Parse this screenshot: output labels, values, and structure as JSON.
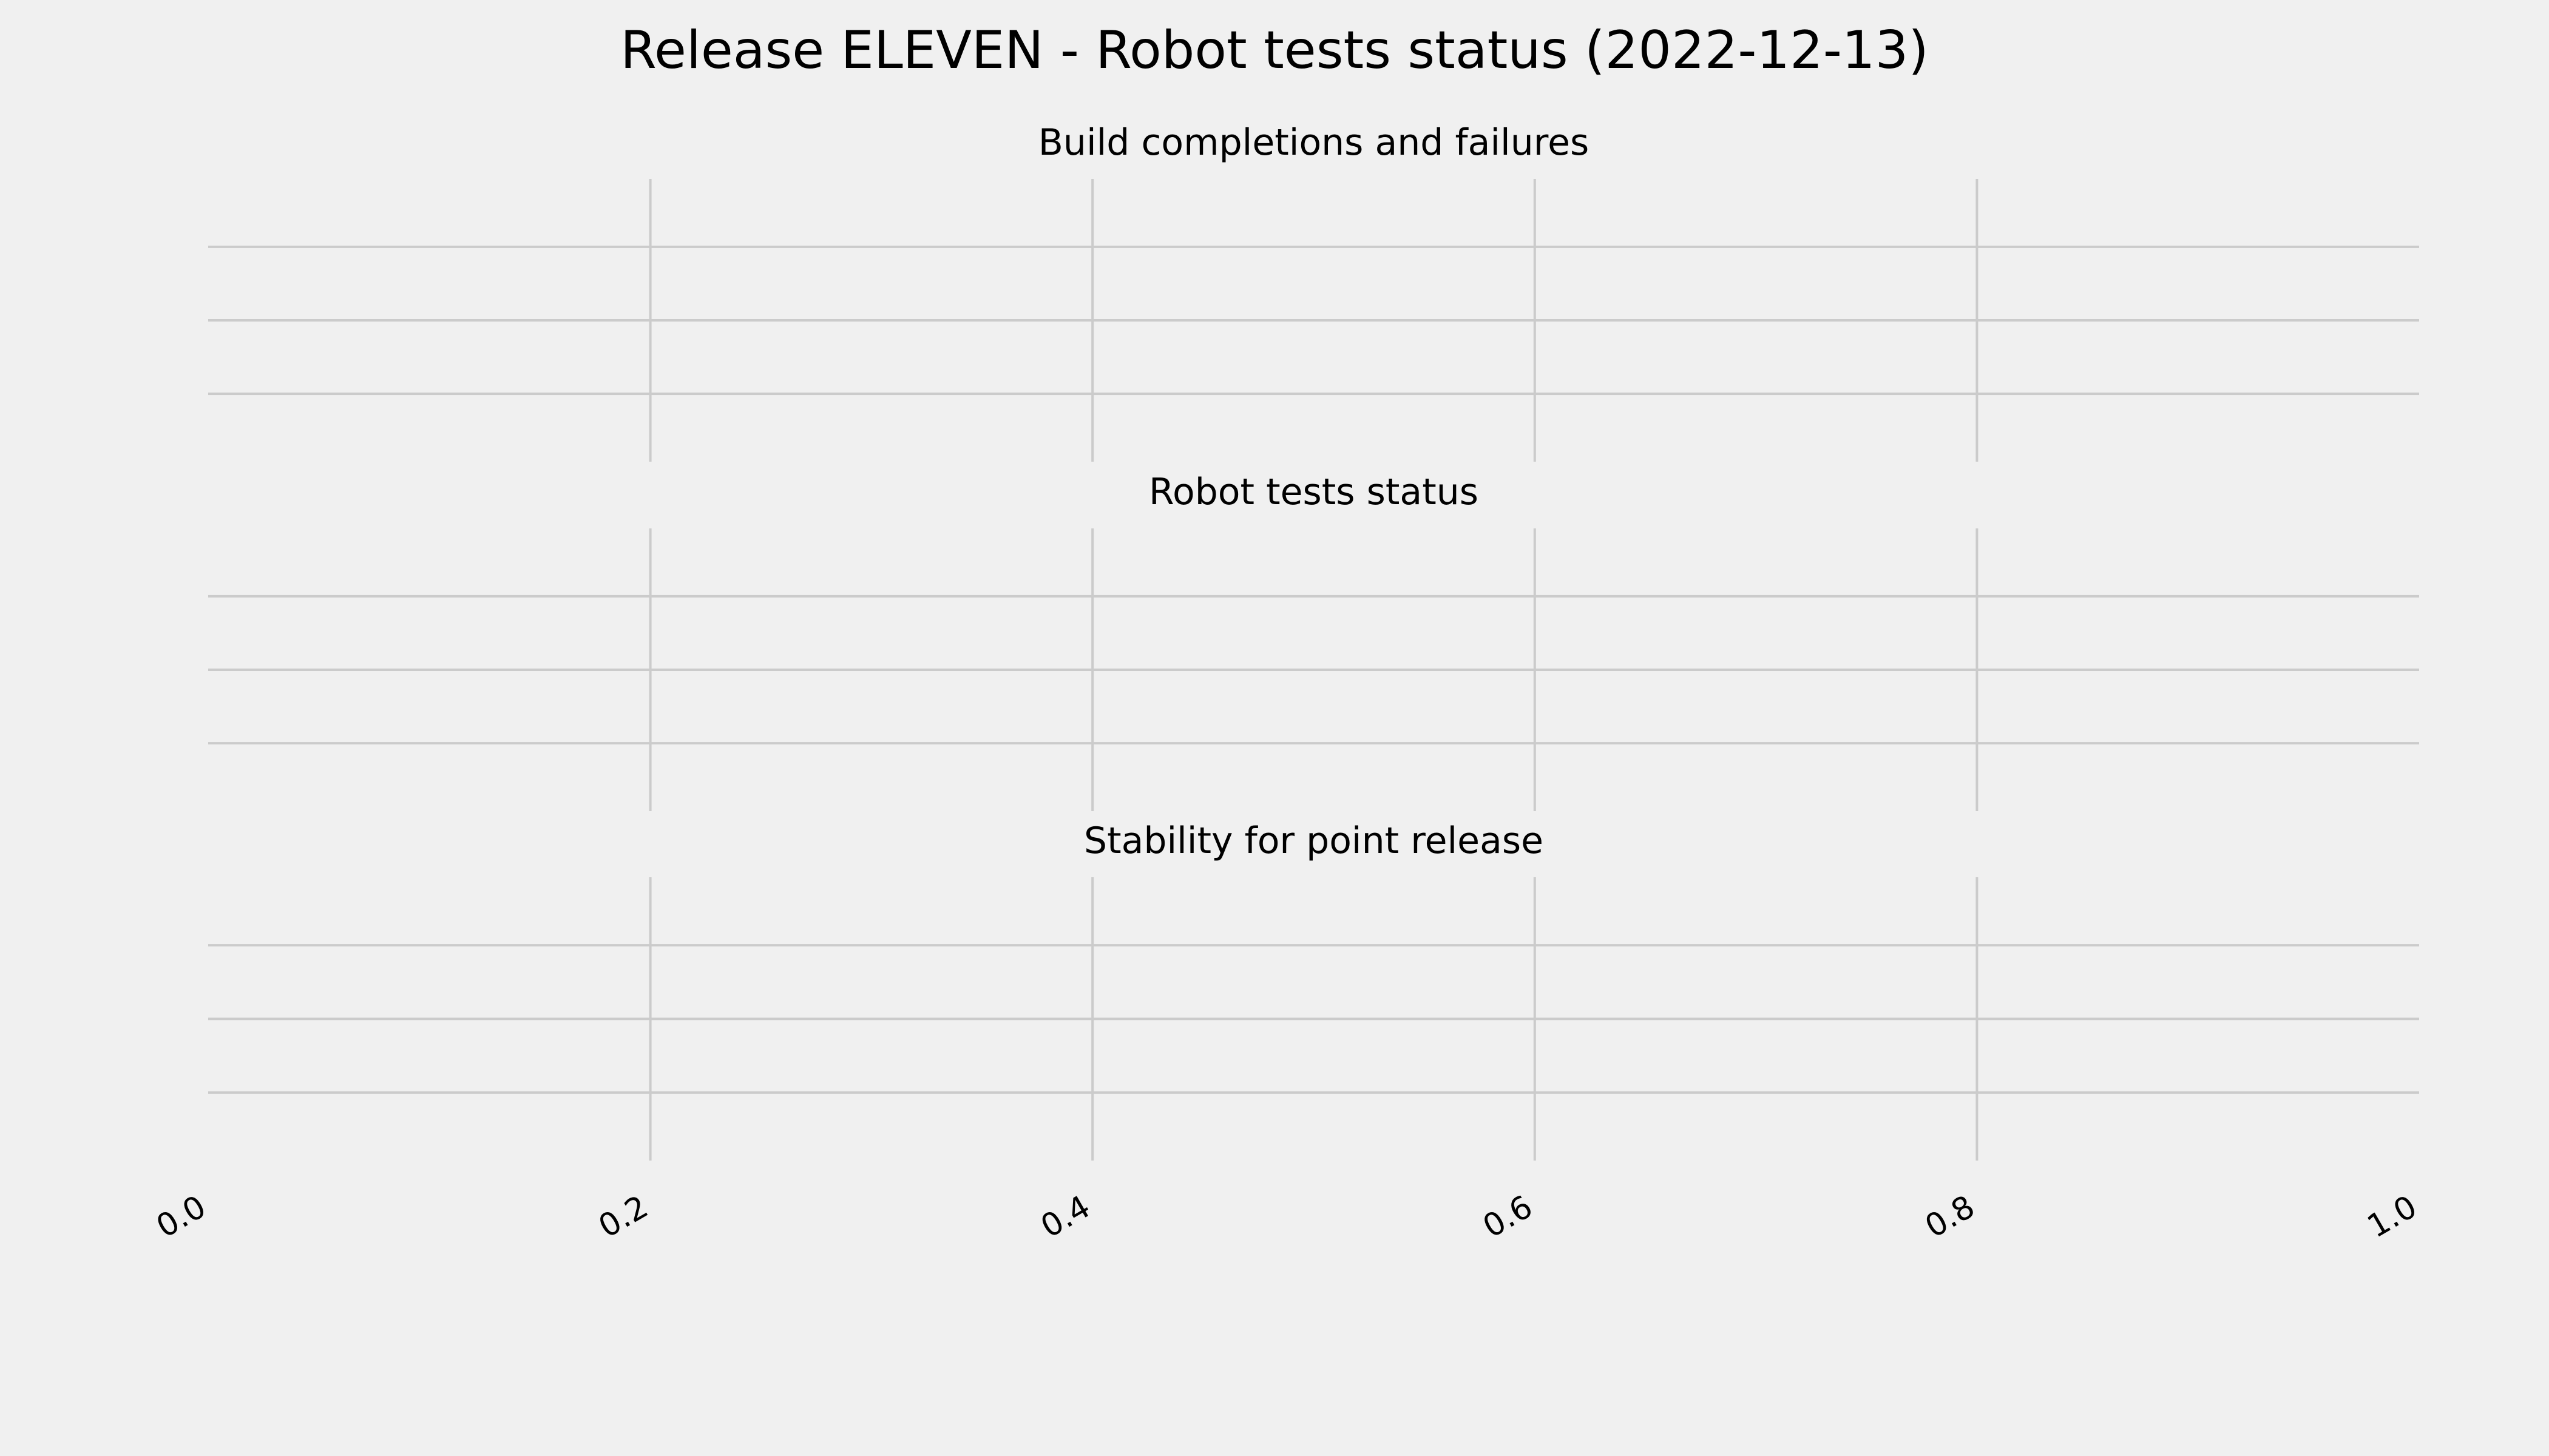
{
  "chart_data": [
    {
      "type": "line",
      "suptitle": "Release ELEVEN - Robot tests status (2022-12-13)",
      "title": "Build completions and failures",
      "series": [],
      "xlim": [
        0.0,
        1.0
      ],
      "grid": true,
      "y_ticks_labeled": false
    },
    {
      "type": "line",
      "title": "Robot tests status",
      "series": [],
      "xlim": [
        0.0,
        1.0
      ],
      "grid": true,
      "y_ticks_labeled": false
    },
    {
      "type": "line",
      "title": "Stability for point release",
      "series": [],
      "xlim": [
        0.0,
        1.0
      ],
      "xticks": [
        "0.0",
        "0.2",
        "0.4",
        "0.6",
        "0.8",
        "1.0"
      ],
      "grid": true,
      "y_ticks_labeled": false
    }
  ],
  "colors": {
    "background": "#f0f0f0",
    "grid": "#cbcbcb",
    "text": "#000000"
  }
}
